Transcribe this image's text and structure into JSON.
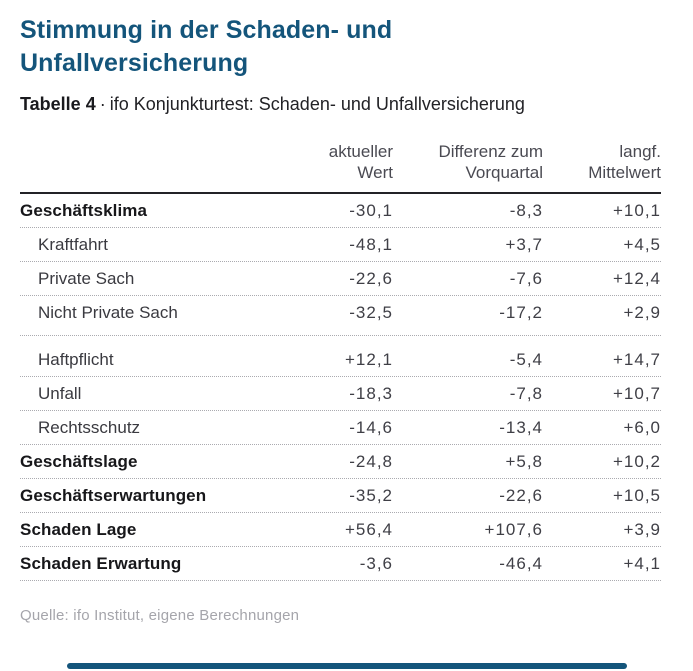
{
  "page": {
    "title": "Stimmung in der Schaden- und Unfallversicherung",
    "subtitle_prefix": "Tabelle 4",
    "subtitle_separator": "·",
    "subtitle_rest": "ifo Konjunkturtest: Schaden- und Unfallversicherung",
    "source": "Quelle: ifo Institut, eigene Berechnungen"
  },
  "colors": {
    "accent": "#14557B",
    "heading_text": "#17171a",
    "body_text": "#3f3f46",
    "muted_text": "#a5a5ab"
  },
  "table": {
    "columns": [
      {
        "line1": "",
        "line2": ""
      },
      {
        "line1": "aktueller",
        "line2": "Wert"
      },
      {
        "line1": "Differenz zum",
        "line2": "Vorquartal"
      },
      {
        "line1": "langf.",
        "line2": "Mittelwert"
      }
    ],
    "rows": [
      {
        "label": "Geschäftsklima",
        "bold": true,
        "indent": false,
        "values": [
          "-30,1",
          "-8,3",
          "+10,1"
        ]
      },
      {
        "label": "Kraftfahrt",
        "bold": false,
        "indent": true,
        "values": [
          "-48,1",
          "+3,7",
          "+4,5"
        ]
      },
      {
        "label": "Private Sach",
        "bold": false,
        "indent": true,
        "values": [
          "-22,6",
          "-7,6",
          "+12,4"
        ]
      },
      {
        "label": "Nicht Private Sach",
        "bold": false,
        "indent": true,
        "gap_after": true,
        "values": [
          "-32,5",
          "-17,2",
          "+2,9"
        ]
      },
      {
        "label": "Haftpflicht",
        "bold": false,
        "indent": true,
        "gap_before": true,
        "values": [
          "+12,1",
          "-5,4",
          "+14,7"
        ]
      },
      {
        "label": "Unfall",
        "bold": false,
        "indent": true,
        "values": [
          "-18,3",
          "-7,8",
          "+10,7"
        ]
      },
      {
        "label": "Rechtsschutz",
        "bold": false,
        "indent": true,
        "values": [
          "-14,6",
          "-13,4",
          "+6,0"
        ]
      },
      {
        "label": "Geschäftslage",
        "bold": true,
        "indent": false,
        "values": [
          "-24,8",
          "+5,8",
          "+10,2"
        ]
      },
      {
        "label": "Geschäftserwartungen",
        "bold": true,
        "indent": false,
        "values": [
          "-35,2",
          "-22,6",
          "+10,5"
        ]
      },
      {
        "label": "Schaden Lage",
        "bold": true,
        "indent": false,
        "values": [
          "+56,4",
          "+107,6",
          "+3,9"
        ]
      },
      {
        "label": "Schaden Erwartung",
        "bold": true,
        "indent": false,
        "values": [
          "-3,6",
          "-46,4",
          "+4,1"
        ]
      }
    ]
  },
  "chart_data": {
    "type": "table",
    "title": "Stimmung in der Schaden- und Unfallversicherung",
    "subtitle": "Tabelle 4 · ifo Konjunkturtest: Schaden- und Unfallversicherung",
    "columns": [
      "",
      "aktueller Wert",
      "Differenz zum Vorquartal",
      "langf. Mittelwert"
    ],
    "rows": [
      [
        "Geschäftsklima",
        -30.1,
        -8.3,
        10.1
      ],
      [
        "Kraftfahrt",
        -48.1,
        3.7,
        4.5
      ],
      [
        "Private Sach",
        -22.6,
        -7.6,
        12.4
      ],
      [
        "Nicht Private Sach",
        -32.5,
        -17.2,
        2.9
      ],
      [
        "Haftpflicht",
        12.1,
        -5.4,
        14.7
      ],
      [
        "Unfall",
        -18.3,
        -7.8,
        10.7
      ],
      [
        "Rechtsschutz",
        -14.6,
        -13.4,
        6.0
      ],
      [
        "Geschäftslage",
        -24.8,
        5.8,
        10.2
      ],
      [
        "Geschäftserwartungen",
        -35.2,
        -22.6,
        10.5
      ],
      [
        "Schaden Lage",
        56.4,
        107.6,
        3.9
      ],
      [
        "Schaden Erwartung",
        -3.6,
        -46.4,
        4.1
      ]
    ],
    "source": "Quelle: ifo Institut, eigene Berechnungen"
  }
}
